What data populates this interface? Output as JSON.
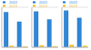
{
  "chart_data": [
    {
      "type": "bar",
      "categories": [
        null,
        null
      ],
      "series": [
        {
          "name": "2022",
          "color": "#2f86d6",
          "values": [
            88,
            64
          ]
        },
        {
          "name": "2023",
          "color": "#f2c12e",
          "values": [
            4,
            2
          ]
        }
      ],
      "ylim": [
        0,
        100
      ],
      "yticks": [
        0,
        50,
        100
      ],
      "grid": true,
      "tick_labels": false,
      "legend": "top"
    },
    {
      "type": "bar",
      "categories": [
        null,
        null
      ],
      "series": [
        {
          "name": "2022",
          "color": "#2f86d6",
          "values": [
            90,
            70
          ]
        },
        {
          "name": "2023",
          "color": "#f2c12e",
          "values": [
            5,
            3
          ]
        }
      ],
      "ylim": [
        0,
        100
      ],
      "yticks": [
        0,
        50,
        100
      ],
      "grid": true,
      "tick_labels": false,
      "legend": "top"
    },
    {
      "type": "bar",
      "categories": [
        null,
        null
      ],
      "series": [
        {
          "name": "2022",
          "color": "#2f86d6",
          "values": [
            92,
            74
          ]
        },
        {
          "name": "2023",
          "color": "#f2c12e",
          "values": [
            6,
            4
          ]
        }
      ],
      "ylim": [
        0,
        100
      ],
      "yticks": [
        0,
        50,
        100
      ],
      "grid": true,
      "tick_labels": false,
      "legend": "top"
    }
  ]
}
